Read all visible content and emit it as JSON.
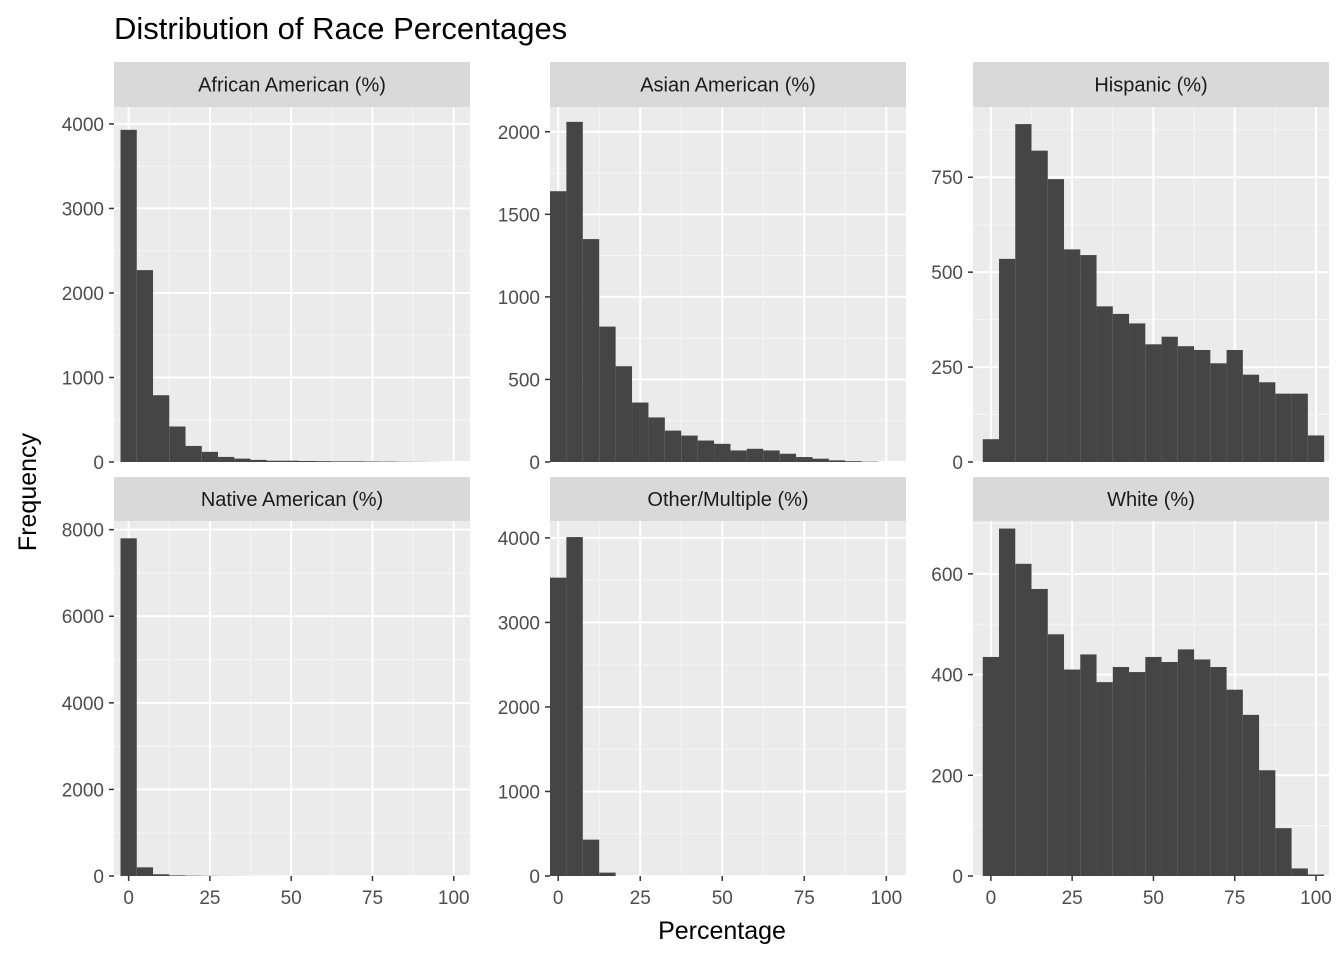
{
  "title": "Distribution of Race Percentages",
  "xlabel": "Percentage",
  "ylabel": "Frequency",
  "chart_data": [
    {
      "type": "bar",
      "facet": "African American (%)",
      "bin_width": 5,
      "bin_centers": [
        0,
        5,
        10,
        15,
        20,
        25,
        30,
        35,
        40,
        45,
        50,
        55,
        60,
        65,
        70,
        75,
        80,
        85,
        90,
        95,
        100
      ],
      "values": [
        3930,
        2270,
        790,
        420,
        190,
        120,
        60,
        40,
        25,
        15,
        15,
        12,
        10,
        8,
        8,
        6,
        5,
        3,
        2,
        1,
        0
      ],
      "x_ticks": [
        0,
        25,
        50,
        75,
        100
      ],
      "y_ticks": [
        0,
        1000,
        2000,
        3000,
        4000
      ],
      "xlim": [
        -4.5,
        105
      ],
      "ylim": [
        0,
        4200
      ]
    },
    {
      "type": "bar",
      "facet": "Asian American (%)",
      "bin_width": 5,
      "bin_centers": [
        0,
        5,
        10,
        15,
        20,
        25,
        30,
        35,
        40,
        45,
        50,
        55,
        60,
        65,
        70,
        75,
        80,
        85,
        90,
        95
      ],
      "values": [
        1640,
        2060,
        1350,
        820,
        580,
        360,
        270,
        190,
        160,
        130,
        110,
        70,
        80,
        70,
        50,
        30,
        20,
        10,
        5,
        2
      ],
      "x_ticks": [
        0,
        25,
        50,
        75,
        100
      ],
      "y_ticks": [
        0,
        500,
        1000,
        1500,
        2000
      ],
      "xlim": [
        -2.5,
        106
      ],
      "ylim": [
        0,
        2150
      ]
    },
    {
      "type": "bar",
      "facet": "Hispanic (%)",
      "bin_width": 5,
      "bin_centers": [
        0,
        5,
        10,
        15,
        20,
        25,
        30,
        35,
        40,
        45,
        50,
        55,
        60,
        65,
        70,
        75,
        80,
        85,
        90,
        95,
        100
      ],
      "values": [
        60,
        535,
        890,
        820,
        745,
        560,
        545,
        410,
        390,
        365,
        310,
        330,
        305,
        295,
        260,
        295,
        230,
        210,
        180,
        180,
        70
      ],
      "x_ticks": [
        0,
        25,
        50,
        75,
        100
      ],
      "y_ticks": [
        0,
        250,
        500,
        750
      ],
      "xlim": [
        -5.5,
        104
      ],
      "ylim": [
        0,
        935
      ]
    },
    {
      "type": "bar",
      "facet": "Native American (%)",
      "bin_width": 5,
      "bin_centers": [
        0,
        5,
        10,
        15,
        20,
        25,
        30,
        35,
        40,
        45,
        50,
        55,
        60,
        65,
        70,
        75,
        80,
        85,
        90,
        95,
        100
      ],
      "values": [
        7800,
        200,
        40,
        15,
        8,
        5,
        3,
        2,
        1,
        1,
        0,
        0,
        0,
        0,
        0,
        0,
        0,
        0,
        0,
        0,
        0
      ],
      "x_ticks": [
        0,
        25,
        50,
        75,
        100
      ],
      "y_ticks": [
        0,
        2000,
        4000,
        6000,
        8000
      ],
      "xlim": [
        -4.5,
        105
      ],
      "ylim": [
        0,
        8200
      ]
    },
    {
      "type": "bar",
      "facet": "Other/Multiple (%)",
      "bin_width": 5,
      "bin_centers": [
        0,
        5,
        10,
        15
      ],
      "values": [
        3530,
        4010,
        430,
        40
      ],
      "x_ticks": [
        0,
        25,
        50,
        75,
        100
      ],
      "y_ticks": [
        0,
        1000,
        2000,
        3000,
        4000
      ],
      "xlim": [
        -2.5,
        106
      ],
      "ylim": [
        0,
        4200
      ]
    },
    {
      "type": "bar",
      "facet": "White (%)",
      "bin_width": 5,
      "bin_centers": [
        0,
        5,
        10,
        15,
        20,
        25,
        30,
        35,
        40,
        45,
        50,
        55,
        60,
        65,
        70,
        75,
        80,
        85,
        90,
        95,
        100
      ],
      "values": [
        435,
        690,
        620,
        570,
        480,
        410,
        440,
        385,
        415,
        405,
        435,
        425,
        450,
        430,
        415,
        370,
        320,
        210,
        95,
        15,
        3
      ],
      "x_ticks": [
        0,
        25,
        50,
        75,
        100
      ],
      "y_ticks": [
        0,
        200,
        400,
        600
      ],
      "xlim": [
        -5.5,
        104
      ],
      "ylim": [
        0,
        705
      ]
    }
  ]
}
